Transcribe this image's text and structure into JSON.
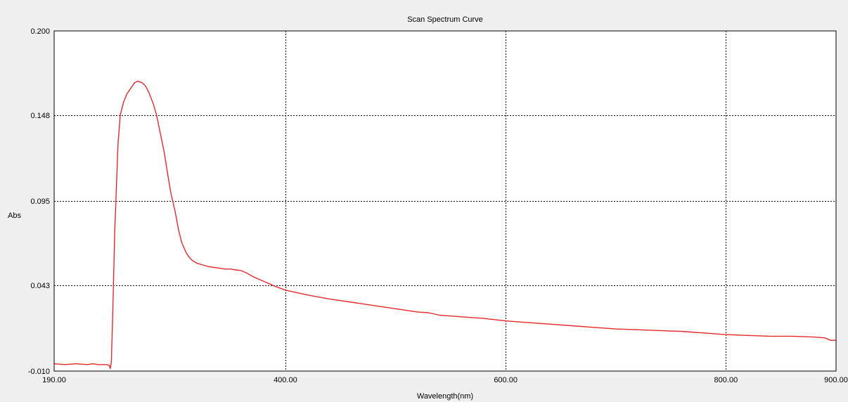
{
  "chart_data": {
    "type": "line",
    "title": "Scan Spectrum Curve",
    "xlabel": "Wavelength(nm)",
    "ylabel": "Abs",
    "xlim": [
      190,
      900
    ],
    "ylim": [
      -0.01,
      0.2
    ],
    "x_ticks": [
      190,
      400,
      600,
      800,
      900
    ],
    "x_tick_labels": [
      "190.00",
      "400.00",
      "600.00",
      "800.00",
      "900.00"
    ],
    "y_ticks": [
      -0.01,
      0.043,
      0.095,
      0.148,
      0.2
    ],
    "y_tick_labels": [
      "-0.010",
      "0.043",
      "0.095",
      "0.148",
      "0.200"
    ],
    "grid": true,
    "grid_style": "dotted",
    "legend": "none",
    "series": [
      {
        "color": "#e8282b",
        "x": [
          190,
          200,
          210,
          220,
          225,
          230,
          238,
          240,
          241,
          242,
          243,
          245,
          248,
          250,
          253,
          256,
          260,
          263,
          266,
          270,
          273,
          276,
          280,
          283,
          286,
          290,
          293,
          296,
          300,
          303,
          306,
          310,
          313,
          316,
          320,
          325,
          330,
          335,
          340,
          345,
          350,
          355,
          360,
          365,
          370,
          375,
          380,
          390,
          400,
          420,
          440,
          460,
          480,
          500,
          520,
          530,
          540,
          560,
          580,
          600,
          620,
          640,
          660,
          680,
          700,
          720,
          740,
          760,
          780,
          800,
          820,
          840,
          860,
          880,
          890,
          895,
          900
        ],
        "y": [
          -0.0055,
          -0.006,
          -0.0055,
          -0.006,
          -0.0055,
          -0.006,
          -0.006,
          -0.0065,
          -0.0085,
          -0.004,
          0.02,
          0.075,
          0.13,
          0.148,
          0.156,
          0.161,
          0.165,
          0.168,
          0.169,
          0.168,
          0.166,
          0.162,
          0.155,
          0.148,
          0.138,
          0.125,
          0.112,
          0.1,
          0.088,
          0.077,
          0.069,
          0.063,
          0.06,
          0.058,
          0.0565,
          0.0555,
          0.0545,
          0.054,
          0.0535,
          0.053,
          0.053,
          0.0525,
          0.052,
          0.0505,
          0.0485,
          0.047,
          0.0455,
          0.0425,
          0.04,
          0.037,
          0.0345,
          0.0325,
          0.0305,
          0.0285,
          0.0265,
          0.026,
          0.0245,
          0.0235,
          0.0225,
          0.021,
          0.02,
          0.019,
          0.018,
          0.017,
          0.016,
          0.0155,
          0.015,
          0.0145,
          0.0135,
          0.0125,
          0.012,
          0.0115,
          0.0115,
          0.011,
          0.0105,
          0.009,
          0.009
        ]
      }
    ]
  }
}
